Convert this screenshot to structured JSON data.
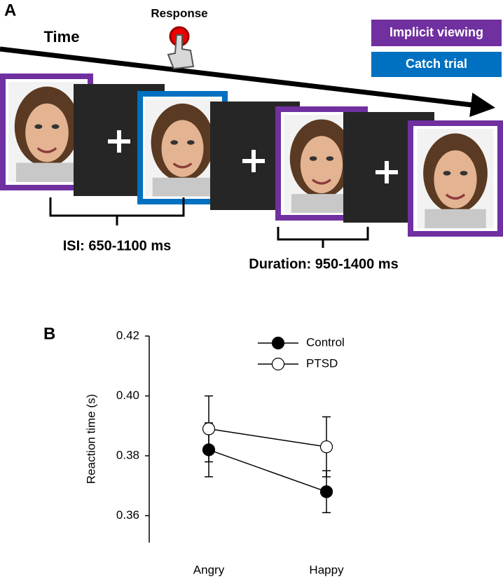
{
  "diagram": {
    "label": "A",
    "time_label": "Time",
    "response_label": "Response",
    "legend": [
      "Implicit viewing",
      "Catch trial"
    ],
    "isi": "ISI: 650-1100 ms",
    "duration": "Duration: 950-1400 ms"
  },
  "chart_data": {
    "type": "line",
    "panel_label": "B",
    "y_label": "Reaction time (s)",
    "categories": [
      "Angry",
      "Happy"
    ],
    "series": [
      {
        "name": "Control",
        "color": "#000000",
        "values": [
          0.382,
          0.368
        ],
        "errors": [
          0.009,
          0.007
        ]
      },
      {
        "name": "PTSD",
        "color": "#ffffff",
        "values": [
          0.389,
          0.383
        ],
        "errors": [
          0.011,
          0.01
        ]
      }
    ],
    "ylim": [
      0.351,
      0.42
    ],
    "yticks": [
      0.36,
      0.38,
      {
        "value": 0.4,
        "label": "0.40"
      },
      0.42
    ],
    "legend": "upper center"
  }
}
